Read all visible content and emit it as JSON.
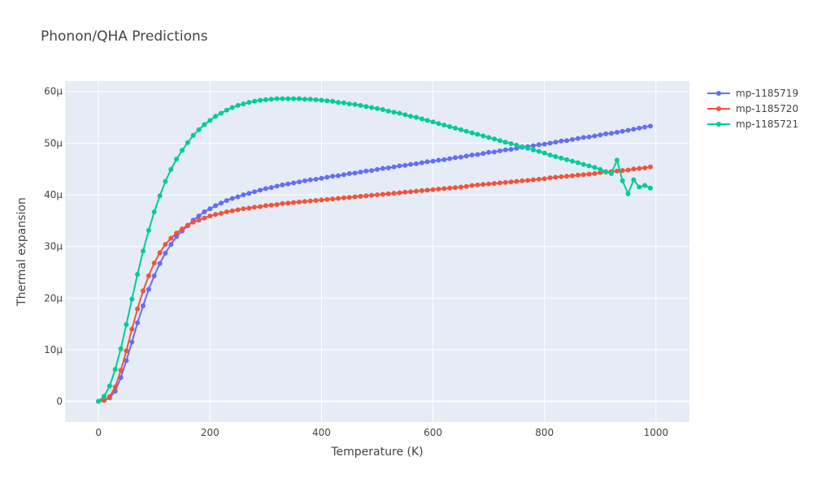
{
  "chart_data": {
    "type": "line",
    "title": "Phonon/QHA Predictions",
    "xlabel": "Temperature (K)",
    "ylabel": "Thermal expansion",
    "xlim": [
      -60,
      1060
    ],
    "ylim": [
      -4e-06,
      6.2e-05
    ],
    "x_ticks": [
      0,
      200,
      400,
      600,
      800,
      1000
    ],
    "x_tick_labels": [
      "0",
      "200",
      "400",
      "600",
      "800",
      "1000"
    ],
    "y_ticks": [
      0,
      1e-05,
      2e-05,
      3e-05,
      4e-05,
      5e-05,
      6e-05
    ],
    "y_tick_labels": [
      "0",
      "10µ",
      "20µ",
      "30µ",
      "40µ",
      "50µ",
      "60µ"
    ],
    "legend_position": "top-right",
    "grid": true,
    "x": [
      0,
      10,
      20,
      30,
      40,
      50,
      60,
      70,
      80,
      90,
      100,
      110,
      120,
      130,
      140,
      150,
      160,
      170,
      180,
      190,
      200,
      210,
      220,
      230,
      240,
      250,
      260,
      270,
      280,
      290,
      300,
      310,
      320,
      330,
      340,
      350,
      360,
      370,
      380,
      390,
      400,
      410,
      420,
      430,
      440,
      450,
      460,
      470,
      480,
      490,
      500,
      510,
      520,
      530,
      540,
      550,
      560,
      570,
      580,
      590,
      600,
      610,
      620,
      630,
      640,
      650,
      660,
      670,
      680,
      690,
      700,
      710,
      720,
      730,
      740,
      750,
      760,
      770,
      780,
      790,
      800,
      810,
      820,
      830,
      840,
      850,
      860,
      870,
      880,
      890,
      900,
      910,
      920,
      930,
      940,
      950,
      960,
      970,
      980,
      990
    ],
    "series": [
      {
        "name": "mp-1185719",
        "color": "#636efa",
        "values": [
          0,
          0.2,
          0.7,
          2.0,
          4.6,
          7.9,
          11.5,
          15.2,
          18.5,
          21.7,
          24.3,
          26.7,
          28.7,
          30.4,
          31.9,
          33.0,
          34.0,
          35.1,
          35.9,
          36.7,
          37.3,
          37.9,
          38.4,
          38.9,
          39.3,
          39.6,
          40.0,
          40.3,
          40.6,
          40.9,
          41.2,
          41.4,
          41.7,
          41.9,
          42.1,
          42.3,
          42.5,
          42.7,
          42.9,
          43.0,
          43.2,
          43.4,
          43.6,
          43.7,
          43.9,
          44.1,
          44.2,
          44.4,
          44.6,
          44.7,
          44.9,
          45.1,
          45.2,
          45.4,
          45.6,
          45.7,
          45.9,
          46.0,
          46.2,
          46.4,
          46.5,
          46.7,
          46.8,
          47.0,
          47.2,
          47.3,
          47.5,
          47.7,
          47.8,
          48.0,
          48.2,
          48.3,
          48.5,
          48.7,
          48.8,
          49.0,
          49.2,
          49.3,
          49.5,
          49.7,
          49.8,
          50.0,
          50.2,
          50.4,
          50.5,
          50.7,
          50.9,
          51.1,
          51.2,
          51.4,
          51.6,
          51.8,
          51.9,
          52.1,
          52.3,
          52.5,
          52.7,
          52.9,
          53.1,
          53.3
        ]
      },
      {
        "name": "mp-1185720",
        "color": "#ef553b",
        "values": [
          0,
          0.2,
          0.9,
          2.8,
          6.0,
          9.8,
          14.0,
          17.9,
          21.4,
          24.3,
          26.8,
          28.8,
          30.4,
          31.6,
          32.6,
          33.4,
          34.1,
          34.7,
          35.1,
          35.5,
          35.9,
          36.2,
          36.4,
          36.7,
          36.9,
          37.1,
          37.3,
          37.4,
          37.6,
          37.7,
          37.9,
          38.0,
          38.1,
          38.3,
          38.4,
          38.5,
          38.6,
          38.7,
          38.8,
          38.9,
          39.0,
          39.1,
          39.2,
          39.3,
          39.4,
          39.5,
          39.6,
          39.7,
          39.8,
          39.9,
          40.0,
          40.1,
          40.2,
          40.3,
          40.4,
          40.5,
          40.6,
          40.7,
          40.8,
          40.9,
          41.0,
          41.1,
          41.2,
          41.3,
          41.4,
          41.5,
          41.6,
          41.8,
          41.9,
          42.0,
          42.1,
          42.2,
          42.3,
          42.4,
          42.5,
          42.6,
          42.7,
          42.8,
          42.9,
          43.0,
          43.1,
          43.3,
          43.4,
          43.5,
          43.6,
          43.7,
          43.8,
          43.9,
          44.0,
          44.1,
          44.3,
          44.4,
          44.5,
          44.6,
          44.7,
          44.8,
          45.0,
          45.1,
          45.2,
          45.4
        ]
      },
      {
        "name": "mp-1185721",
        "color": "#00cc96",
        "values": [
          0,
          1.0,
          3.0,
          6.2,
          10.2,
          14.9,
          19.8,
          24.6,
          29.1,
          33.1,
          36.7,
          39.8,
          42.6,
          44.9,
          46.9,
          48.6,
          50.1,
          51.5,
          52.6,
          53.6,
          54.4,
          55.2,
          55.8,
          56.4,
          56.9,
          57.3,
          57.6,
          57.9,
          58.1,
          58.3,
          58.4,
          58.5,
          58.6,
          58.6,
          58.6,
          58.6,
          58.6,
          58.5,
          58.5,
          58.4,
          58.3,
          58.2,
          58.1,
          57.9,
          57.8,
          57.6,
          57.5,
          57.3,
          57.1,
          56.9,
          56.7,
          56.5,
          56.2,
          56.0,
          55.8,
          55.5,
          55.2,
          55.0,
          54.7,
          54.4,
          54.1,
          53.8,
          53.5,
          53.2,
          52.9,
          52.6,
          52.3,
          52.0,
          51.7,
          51.4,
          51.1,
          50.8,
          50.5,
          50.2,
          49.9,
          49.6,
          49.3,
          49.0,
          48.7,
          48.4,
          48.1,
          47.7,
          47.4,
          47.1,
          46.8,
          46.5,
          46.2,
          45.9,
          45.6,
          45.3,
          44.9,
          44.5,
          44.1,
          46.7,
          42.7,
          40.2,
          42.9,
          41.5,
          41.8,
          41.3
        ]
      }
    ]
  }
}
